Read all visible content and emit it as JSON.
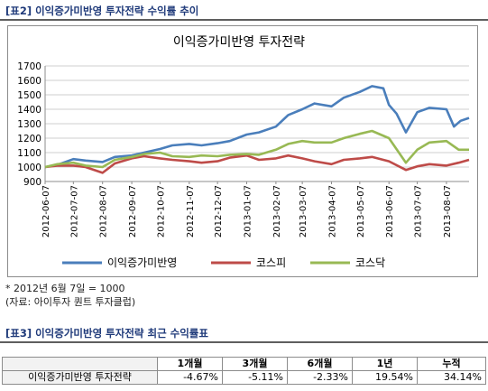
{
  "caption_top": "[표2] 이익증가미반영 투자전략 수익률 추이",
  "caption_bottom": "[표3] 이익증가미반영 투자전략 최근 수익률표",
  "notes": [
    "* 2012년 6월 7일 = 1000",
    "(자료: 아이투자 퀀트 투자클럽)"
  ],
  "colors": {
    "caption": "#1f3a7a",
    "strategy": "#4a7ebb",
    "kospi": "#be4b48",
    "kosdaq": "#98b954"
  },
  "chart_data": {
    "type": "line",
    "title": "이익증가미반영 투자전략",
    "ylim": [
      900,
      1700
    ],
    "yticks": [
      900,
      1000,
      1100,
      1200,
      1300,
      1400,
      1500,
      1600,
      1700
    ],
    "xlim": [
      "2012-06-07",
      "2013-08-31"
    ],
    "xticks": [
      "2012-06-07",
      "2012-07-07",
      "2012-08-07",
      "2012-09-07",
      "2012-10-07",
      "2012-11-07",
      "2012-12-07",
      "2013-01-07",
      "2013-02-07",
      "2013-03-07",
      "2013-04-07",
      "2013-05-07",
      "2013-06-07",
      "2013-07-07",
      "2013-08-07"
    ],
    "grid": "horizontal",
    "legend_position": "bottom",
    "series": [
      {
        "name": "이익증가미반영",
        "color": "#4a7ebb",
        "points": [
          [
            "2012-06-07",
            1000
          ],
          [
            "2012-06-20",
            1015
          ],
          [
            "2012-07-07",
            1055
          ],
          [
            "2012-07-20",
            1045
          ],
          [
            "2012-08-07",
            1035
          ],
          [
            "2012-08-20",
            1070
          ],
          [
            "2012-09-07",
            1080
          ],
          [
            "2012-09-20",
            1100
          ],
          [
            "2012-10-07",
            1125
          ],
          [
            "2012-10-20",
            1150
          ],
          [
            "2012-11-07",
            1160
          ],
          [
            "2012-11-20",
            1150
          ],
          [
            "2012-12-07",
            1165
          ],
          [
            "2012-12-20",
            1180
          ],
          [
            "2013-01-07",
            1225
          ],
          [
            "2013-01-20",
            1240
          ],
          [
            "2013-02-07",
            1280
          ],
          [
            "2013-02-20",
            1360
          ],
          [
            "2013-03-07",
            1400
          ],
          [
            "2013-03-20",
            1440
          ],
          [
            "2013-04-07",
            1420
          ],
          [
            "2013-04-20",
            1480
          ],
          [
            "2013-05-07",
            1520
          ],
          [
            "2013-05-20",
            1560
          ],
          [
            "2013-06-01",
            1545
          ],
          [
            "2013-06-07",
            1430
          ],
          [
            "2013-06-15",
            1370
          ],
          [
            "2013-06-25",
            1240
          ],
          [
            "2013-07-07",
            1380
          ],
          [
            "2013-07-20",
            1410
          ],
          [
            "2013-08-07",
            1400
          ],
          [
            "2013-08-15",
            1280
          ],
          [
            "2013-08-22",
            1320
          ],
          [
            "2013-08-31",
            1340
          ]
        ]
      },
      {
        "name": "코스피",
        "color": "#be4b48",
        "points": [
          [
            "2012-06-07",
            1000
          ],
          [
            "2012-06-20",
            1010
          ],
          [
            "2012-07-07",
            1010
          ],
          [
            "2012-07-20",
            1000
          ],
          [
            "2012-08-07",
            960
          ],
          [
            "2012-08-20",
            1025
          ],
          [
            "2012-09-07",
            1060
          ],
          [
            "2012-09-20",
            1075
          ],
          [
            "2012-10-07",
            1060
          ],
          [
            "2012-10-20",
            1050
          ],
          [
            "2012-11-07",
            1040
          ],
          [
            "2012-11-20",
            1030
          ],
          [
            "2012-12-07",
            1040
          ],
          [
            "2012-12-20",
            1065
          ],
          [
            "2013-01-07",
            1080
          ],
          [
            "2013-01-20",
            1050
          ],
          [
            "2013-02-07",
            1060
          ],
          [
            "2013-02-20",
            1080
          ],
          [
            "2013-03-07",
            1060
          ],
          [
            "2013-03-20",
            1040
          ],
          [
            "2013-04-07",
            1020
          ],
          [
            "2013-04-20",
            1050
          ],
          [
            "2013-05-07",
            1060
          ],
          [
            "2013-05-20",
            1070
          ],
          [
            "2013-06-07",
            1040
          ],
          [
            "2013-06-25",
            980
          ],
          [
            "2013-07-07",
            1005
          ],
          [
            "2013-07-20",
            1020
          ],
          [
            "2013-08-07",
            1010
          ],
          [
            "2013-08-20",
            1030
          ],
          [
            "2013-08-31",
            1050
          ]
        ]
      },
      {
        "name": "코스닥",
        "color": "#98b954",
        "points": [
          [
            "2012-06-07",
            1000
          ],
          [
            "2012-06-20",
            1020
          ],
          [
            "2012-07-07",
            1030
          ],
          [
            "2012-07-20",
            1010
          ],
          [
            "2012-08-07",
            1000
          ],
          [
            "2012-08-20",
            1050
          ],
          [
            "2012-09-07",
            1070
          ],
          [
            "2012-09-20",
            1090
          ],
          [
            "2012-10-07",
            1100
          ],
          [
            "2012-10-20",
            1075
          ],
          [
            "2012-11-07",
            1070
          ],
          [
            "2012-11-20",
            1080
          ],
          [
            "2012-12-07",
            1075
          ],
          [
            "2012-12-20",
            1085
          ],
          [
            "2013-01-07",
            1090
          ],
          [
            "2013-01-20",
            1085
          ],
          [
            "2013-02-07",
            1120
          ],
          [
            "2013-02-20",
            1160
          ],
          [
            "2013-03-07",
            1180
          ],
          [
            "2013-03-20",
            1170
          ],
          [
            "2013-04-07",
            1170
          ],
          [
            "2013-04-20",
            1200
          ],
          [
            "2013-05-07",
            1230
          ],
          [
            "2013-05-20",
            1250
          ],
          [
            "2013-06-07",
            1200
          ],
          [
            "2013-06-25",
            1030
          ],
          [
            "2013-07-07",
            1120
          ],
          [
            "2013-07-20",
            1170
          ],
          [
            "2013-08-07",
            1180
          ],
          [
            "2013-08-20",
            1120
          ],
          [
            "2013-08-31",
            1120
          ]
        ]
      }
    ]
  },
  "returns_table": {
    "headers": [
      "",
      "1개월",
      "3개월",
      "6개월",
      "1년",
      "누적"
    ],
    "rows": [
      {
        "label": "이익증가미반영 투자전략",
        "values": [
          "-4.67%",
          "-5.11%",
          "-2.33%",
          "19.54%",
          "34.14%"
        ]
      }
    ]
  }
}
